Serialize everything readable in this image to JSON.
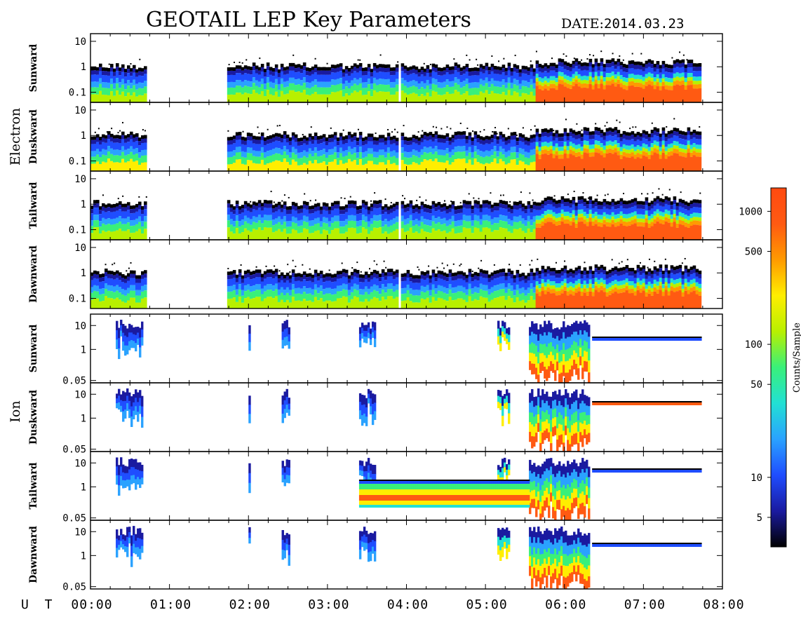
{
  "title": "GEOTAIL LEP Key Parameters",
  "date_label": "DATE:",
  "date_value": "2014.03.23",
  "x_axis_label": "U T",
  "chart_data": {
    "type": "heatmap",
    "x_range_hours": [
      0,
      8
    ],
    "x_ticks": [
      "00:00",
      "01:00",
      "02:00",
      "03:00",
      "04:00",
      "05:00",
      "06:00",
      "07:00",
      "08:00"
    ],
    "colorbar": {
      "title": "Counts/Sample",
      "scale": "log",
      "range": [
        3,
        1500
      ],
      "ticks": [
        "5",
        "10",
        "50",
        "100",
        "500",
        "1000"
      ],
      "tick_values": [
        5,
        10,
        50,
        100,
        500,
        1000
      ],
      "colors": [
        "#000000",
        "#1a1aa0",
        "#1f4dff",
        "#2aa2ff",
        "#22e0d4",
        "#39f07a",
        "#b8f000",
        "#ffee00",
        "#ff9a00",
        "#ff5a12",
        "#ff4a10"
      ]
    },
    "groups": [
      {
        "name": "Electron",
        "y_scale": "log",
        "y_range": [
          0.04,
          20
        ],
        "y_ticks": [
          "10",
          "1",
          "0.1"
        ],
        "y_tick_values": [
          10,
          1,
          0.1
        ],
        "panels": [
          {
            "label": "Sunward",
            "data_intervals_hours": [
              [
                0.0,
                0.68
              ],
              [
                1.73,
                3.88
              ],
              [
                3.93,
                7.73
              ]
            ]
          },
          {
            "label": "Duskward",
            "data_intervals_hours": [
              [
                0.0,
                0.68
              ],
              [
                1.73,
                3.88
              ],
              [
                3.93,
                7.73
              ]
            ]
          },
          {
            "label": "Tailward",
            "data_intervals_hours": [
              [
                0.0,
                0.68
              ],
              [
                1.73,
                3.88
              ],
              [
                3.93,
                7.73
              ]
            ]
          },
          {
            "label": "Dawnward",
            "data_intervals_hours": [
              [
                0.0,
                0.68
              ],
              [
                1.73,
                3.88
              ],
              [
                3.93,
                7.73
              ]
            ]
          }
        ]
      },
      {
        "name": "Ion",
        "y_scale": "log",
        "y_range": [
          0.04,
          30
        ],
        "y_ticks": [
          "10",
          "1",
          "0.05"
        ],
        "y_tick_values": [
          10,
          1,
          0.05
        ],
        "panels": [
          {
            "label": "Sunward"
          },
          {
            "label": "Duskward"
          },
          {
            "label": "Tailward"
          },
          {
            "label": "Dawnward"
          }
        ]
      }
    ]
  }
}
